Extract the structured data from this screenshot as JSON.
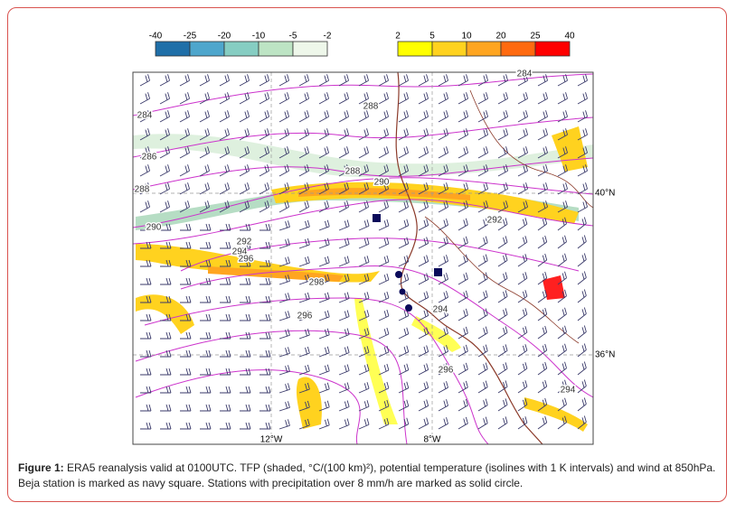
{
  "colorbar": {
    "negative_labels": [
      "-40",
      "-25",
      "-20",
      "-10",
      "-5",
      "-2"
    ],
    "positive_labels": [
      "2",
      "5",
      "10",
      "20",
      "25",
      "40"
    ]
  },
  "map": {
    "contour_labels": [
      "284",
      "286",
      "288",
      "290",
      "292",
      "294",
      "296",
      "298",
      "296",
      "288",
      "288",
      "290",
      "292",
      "294",
      "296",
      "294",
      "284"
    ],
    "latitude_labels": [
      "40°N",
      "36°N"
    ],
    "longitude_labels": [
      "12°W",
      "8°W"
    ]
  },
  "caption": {
    "label": "Figure 1:",
    "text": "ERA5 reanalysis valid at 0100UTC. TFP (shaded, °C/(100 km)²), potential temperature (isolines with 1 K intervals) and wind at 850hPa. Beja station is marked as navy square. Stations with precipitation over 8 mm/h are marked as solid circle."
  }
}
